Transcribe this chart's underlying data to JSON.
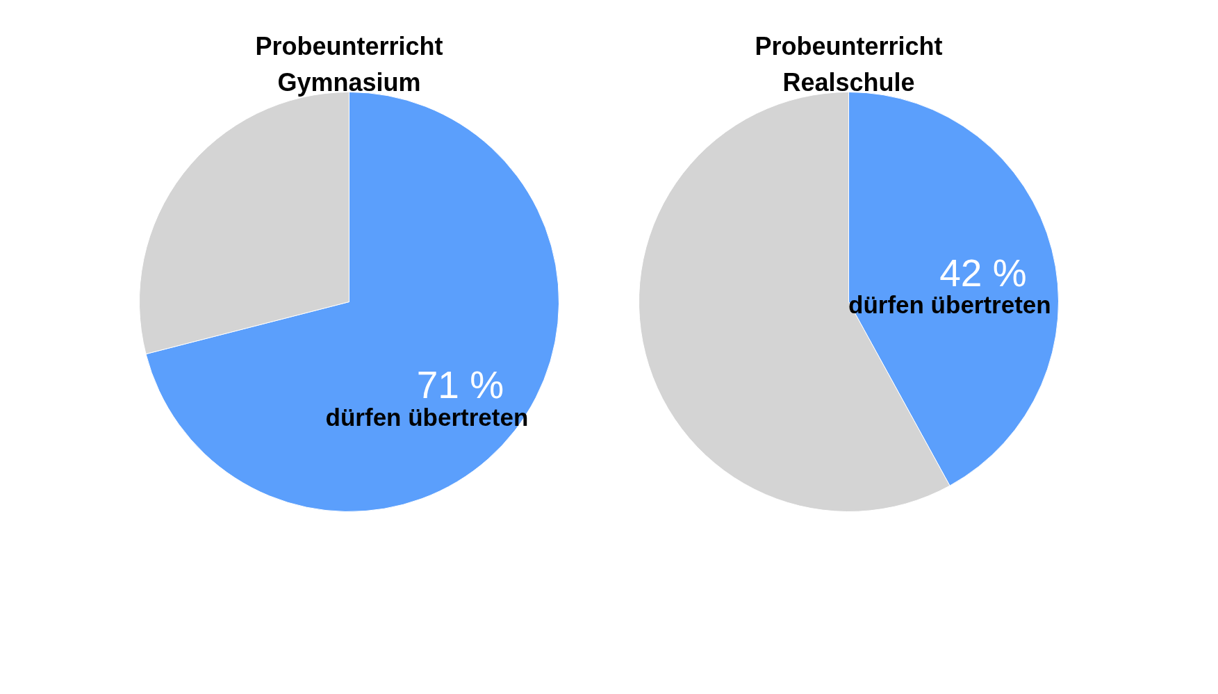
{
  "chart_data": [
    {
      "type": "pie",
      "title": "Probeunterricht\nGymnasium",
      "categories": [
        "dürfen übertreten",
        null
      ],
      "values": [
        71,
        29
      ],
      "colors": [
        "#5b9ffc",
        "#d4d4d4"
      ],
      "value_labels": [
        "71 %",
        null
      ]
    },
    {
      "type": "pie",
      "title": "Probeunterricht\nRealschule",
      "categories": [
        "dürfen übertreten",
        null
      ],
      "values": [
        42,
        58
      ],
      "colors": [
        "#5b9ffc",
        "#d4d4d4"
      ],
      "value_labels": [
        "42 %",
        null
      ]
    }
  ]
}
